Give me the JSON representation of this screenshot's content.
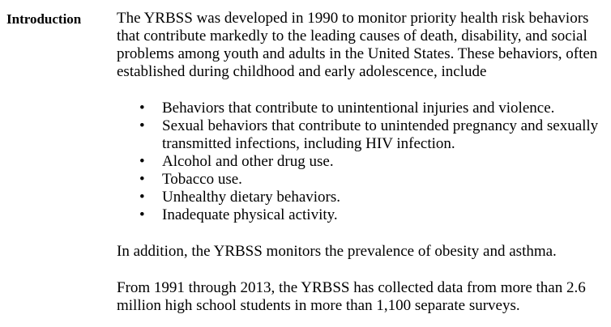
{
  "section": {
    "heading": "Introduction",
    "intro_paragraph": "The YRBSS was developed in 1990 to monitor priority health risk behaviors that contribute markedly to the leading causes of death, disability, and social problems among youth and adults in the United States. These behaviors, often established during childhood and early adolescence, include",
    "bullet_symbol": "•",
    "bullets": [
      "Behaviors that contribute to unintentional injuries and violence.",
      "Sexual behaviors that contribute to unintended pregnancy and sexually transmitted infections, including HIV infection.",
      "Alcohol and other drug use.",
      "Tobacco use.",
      "Unhealthy dietary behaviors.",
      "Inadequate physical activity."
    ],
    "paragraph_2": "In addition, the YRBSS monitors the prevalence of obesity and asthma.",
    "paragraph_3": "From 1991 through 2013, the YRBSS has collected data from more than 2.6 million high school students in more than 1,100 separate surveys."
  }
}
